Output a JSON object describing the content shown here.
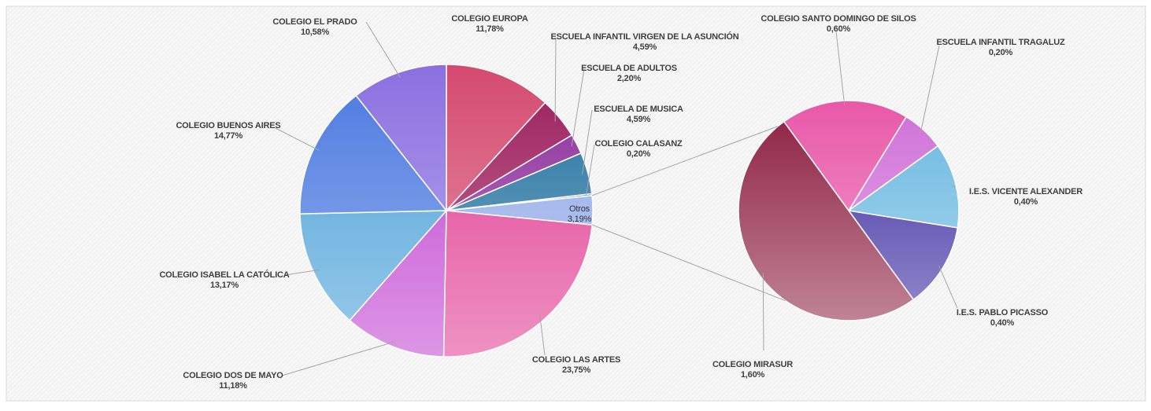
{
  "chart_data": [
    {
      "type": "pie",
      "categories": [
        "COLEGIO EUROPA",
        "ESCUELA INFANTIL VIRGEN DE LA ASUNCIÓN",
        "ESCUELA DE ADULTOS",
        "ESCUELA DE MUSICA",
        "COLEGIO CALASANZ",
        "Otros",
        "COLEGIO LAS ARTES",
        "COLEGIO DOS DE MAYO",
        "COLEGIO ISABEL LA CATÓLICA",
        "COLEGIO BUENOS AIRES",
        "COLEGIO EL PRADO"
      ],
      "values": [
        11.78,
        4.59,
        2.2,
        4.59,
        0.2,
        3.19,
        23.75,
        11.18,
        13.17,
        14.77,
        10.58
      ],
      "value_labels": [
        "11,78%",
        "4,59%",
        "2,20%",
        "4,59%",
        "0,20%",
        "3,19%",
        "23,75%",
        "11,18%",
        "13,17%",
        "14,77%",
        "10,58%"
      ],
      "colors": [
        "#d44a6e",
        "#9b1a5a",
        "#8a2a9a",
        "#1f6f9e",
        "#3a5fa0",
        "#8fa8e8",
        "#e03890",
        "#c040d0",
        "#4aa0d8",
        "#4a78e0",
        "#8a70e0"
      ]
    },
    {
      "type": "pie",
      "categories": [
        "COLEGIO SANTO DOMINGO DE SILOS",
        "ESCUELA INFANTIL TRAGALUZ",
        "I.E.S. VICENTE ALEXANDER",
        "I.E.S. PABLO PICASSO",
        "COLEGIO MIRASUR"
      ],
      "values": [
        0.6,
        0.2,
        0.4,
        0.4,
        1.6
      ],
      "value_labels": [
        "0,60%",
        "0,20%",
        "0,40%",
        "0,40%",
        "1,60%"
      ],
      "colors": [
        "#e858a8",
        "#d070d8",
        "#6ab8e0",
        "#3a2aa0",
        "#8c1e40"
      ]
    }
  ]
}
